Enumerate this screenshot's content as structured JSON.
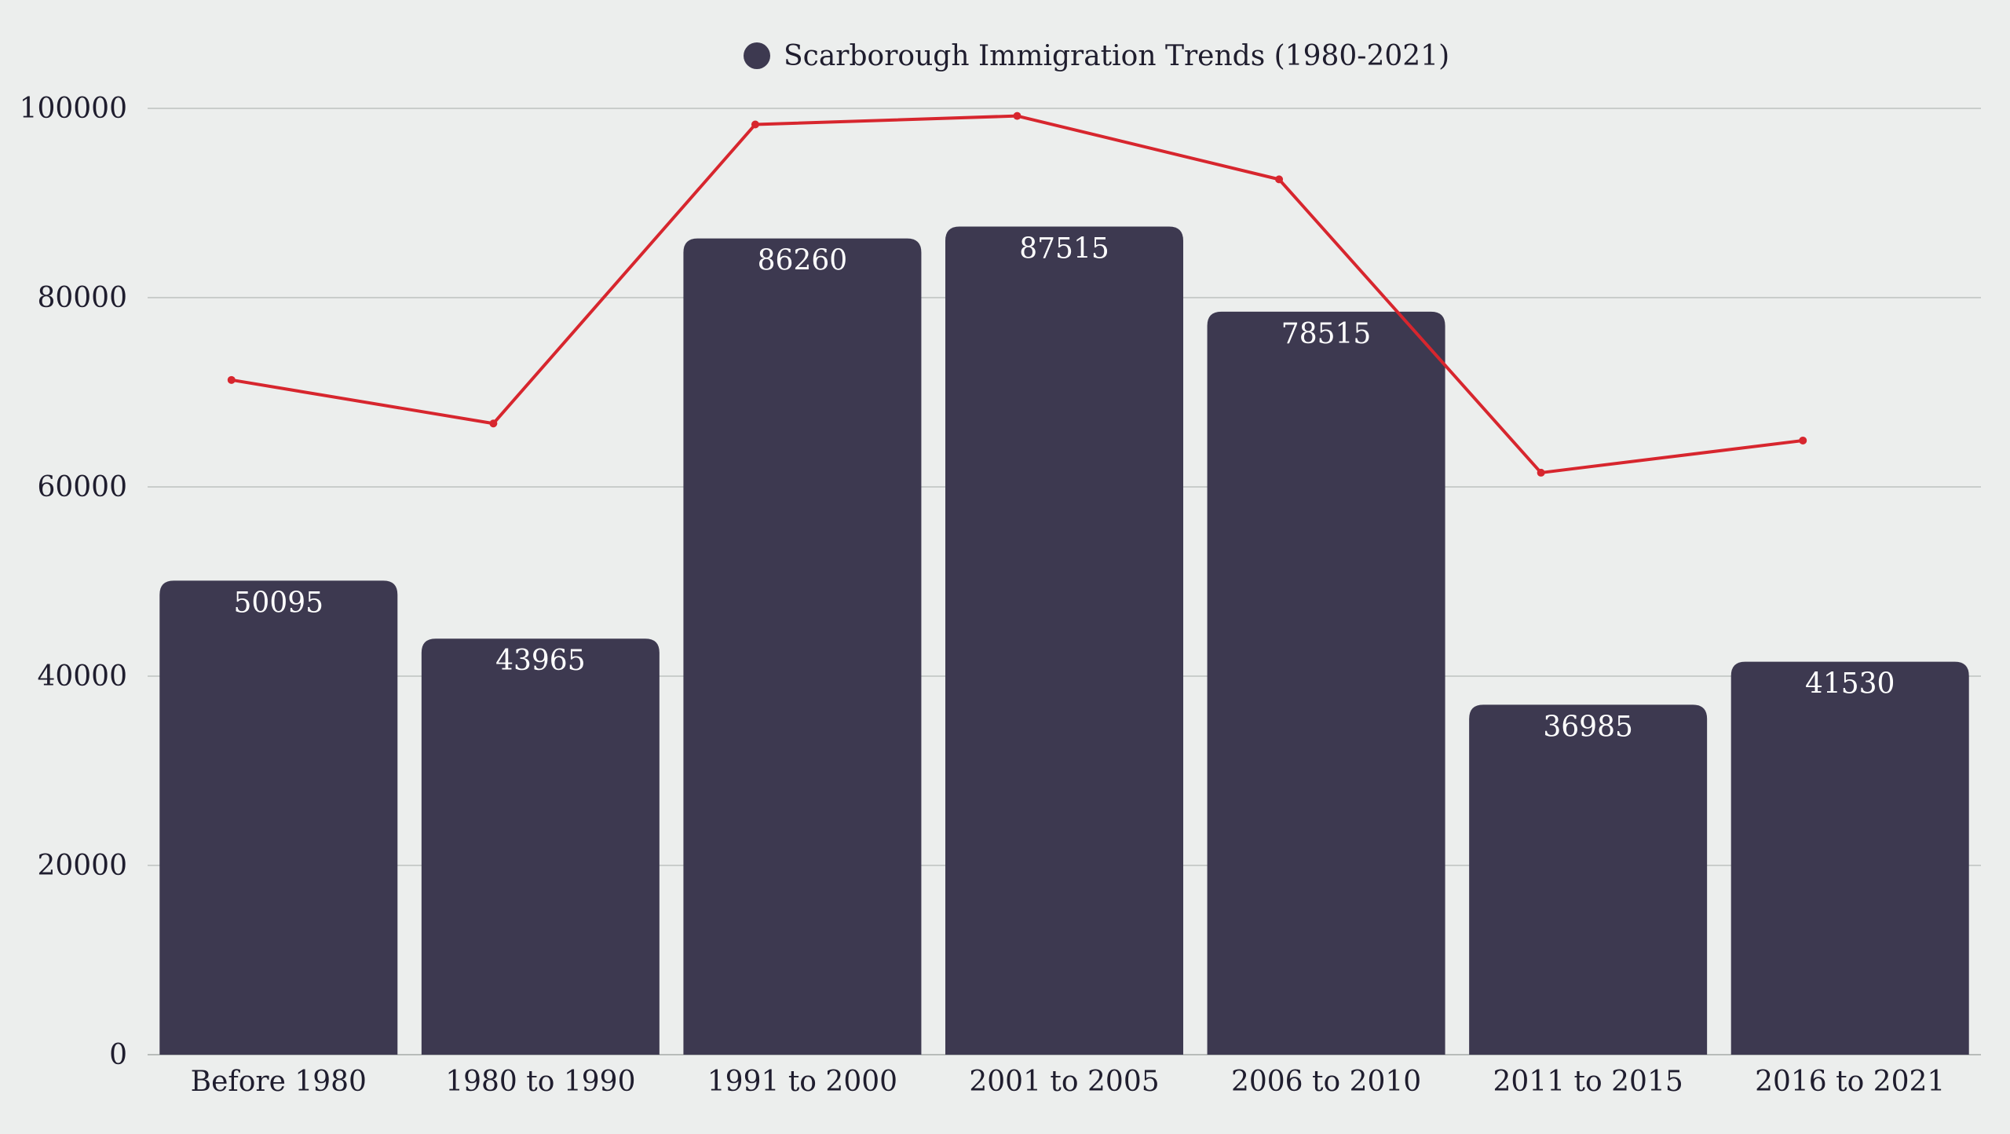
{
  "chart_data": {
    "type": "bar",
    "categories": [
      "Before 1980",
      "1980 to 1990",
      "1991 to 2000",
      "2001 to 2005",
      "2006 to 2010",
      "2011 to 2015",
      "2016 to 2021"
    ],
    "series": [
      {
        "name": "Scarborough Immigration Trends (1980-2021)",
        "type": "bar",
        "values": [
          50095,
          43965,
          86260,
          87515,
          78515,
          36985,
          41530
        ],
        "color": "#3D3950"
      },
      {
        "type": "line",
        "values": [
          71300,
          66700,
          98300,
          99200,
          92500,
          61500,
          64900
        ],
        "color": "#D7262E"
      }
    ],
    "data_labels": [
      "50095",
      "43965",
      "86260",
      "87515",
      "78515",
      "36985",
      "41530"
    ],
    "ylim": [
      0,
      100000
    ],
    "yticks": [
      "0",
      "20000",
      "40000",
      "60000",
      "80000",
      "100000"
    ],
    "grid": true,
    "legend_position": "top-center",
    "background": "#ECEEED"
  }
}
